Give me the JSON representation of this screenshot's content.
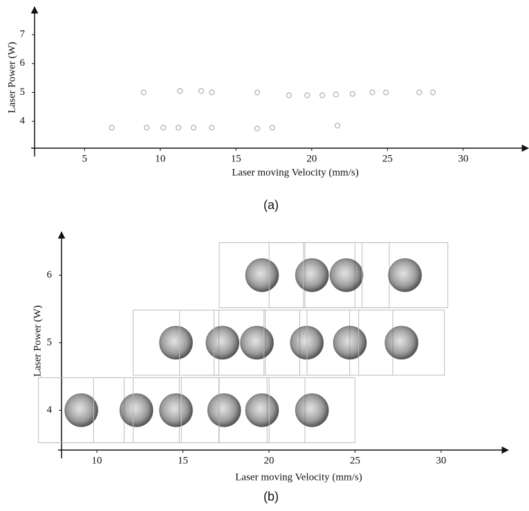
{
  "chart_data": [
    {
      "type": "scatter",
      "label": "(a)",
      "xlabel": "Laser moving Velocity (mm/s)",
      "ylabel": "Laser Power (W)",
      "x": [
        6.8,
        9.1,
        10.2,
        11.2,
        12.2,
        13.4,
        16.4,
        17.4,
        8.9,
        11.3,
        12.7,
        13.4,
        16.4,
        18.5,
        19.7,
        20.7,
        21.6,
        22.7,
        24.0,
        24.9,
        27.1,
        28.0,
        21.7
      ],
      "values": [
        3.78,
        3.78,
        3.78,
        3.78,
        3.78,
        3.78,
        3.75,
        3.78,
        5.0,
        5.05,
        5.05,
        5.0,
        5.0,
        4.9,
        4.9,
        4.9,
        4.93,
        4.95,
        5.0,
        5.0,
        5.0,
        5.0,
        3.85
      ],
      "color": "#9a9a9a",
      "xlim": [
        1.7,
        34.3
      ],
      "ylim": [
        3.07,
        7.96
      ],
      "xticks": [
        5,
        10,
        15,
        20,
        25,
        30
      ],
      "yticks": [
        4,
        5,
        6,
        7
      ]
    },
    {
      "type": "micrograph",
      "label": "(b)",
      "xlabel": "Laser moving Velocity (mm/s)",
      "ylabel": "Laser Power (W)",
      "x": [
        9.1,
        12.3,
        14.6,
        17.4,
        19.6,
        22.5,
        14.6,
        17.3,
        19.3,
        22.2,
        24.7,
        27.7,
        19.6,
        22.5,
        24.5,
        27.9
      ],
      "values": [
        4,
        4,
        4,
        4,
        4,
        4,
        5,
        5,
        5,
        5,
        5,
        5,
        6,
        6,
        6,
        6
      ],
      "color": "#444444",
      "xlim": [
        7.95,
        33.9
      ],
      "ylim": [
        3.41,
        6.64
      ],
      "xticks": [
        10,
        15,
        20,
        25,
        30
      ],
      "yticks": [
        4,
        5,
        6
      ]
    }
  ]
}
